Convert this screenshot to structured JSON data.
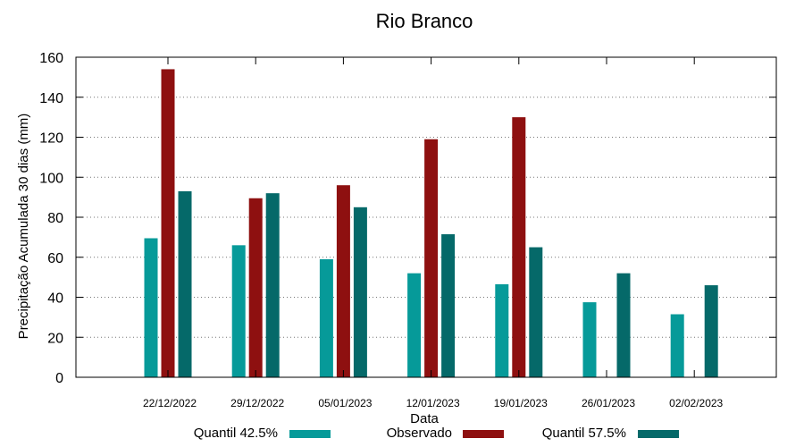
{
  "chart_data": {
    "type": "bar",
    "title": "Rio Branco",
    "xlabel": "Data",
    "ylabel": "Precipitação Acumulada 30 dias (mm)",
    "ylim": [
      0,
      160
    ],
    "yticks": [
      0,
      20,
      40,
      60,
      80,
      100,
      120,
      140,
      160
    ],
    "grid": "horizontal dotted",
    "legend_position": "bottom",
    "categories": [
      "22/12/2022",
      "29/12/2022",
      "05/01/2023",
      "12/01/2023",
      "19/01/2023",
      "26/01/2023",
      "02/02/2023"
    ],
    "series": [
      {
        "name": "Quantil 42.5%",
        "color": "#069a99",
        "values": [
          69.5,
          66,
          59,
          52,
          46.5,
          37.5,
          31.5
        ]
      },
      {
        "name": "Observado",
        "color": "#8e1010",
        "values": [
          154,
          89.5,
          96,
          119,
          130,
          null,
          null
        ]
      },
      {
        "name": "Quantil 57.5%",
        "color": "#056969",
        "values": [
          93,
          92,
          85,
          71.5,
          65,
          52,
          46
        ]
      }
    ]
  }
}
